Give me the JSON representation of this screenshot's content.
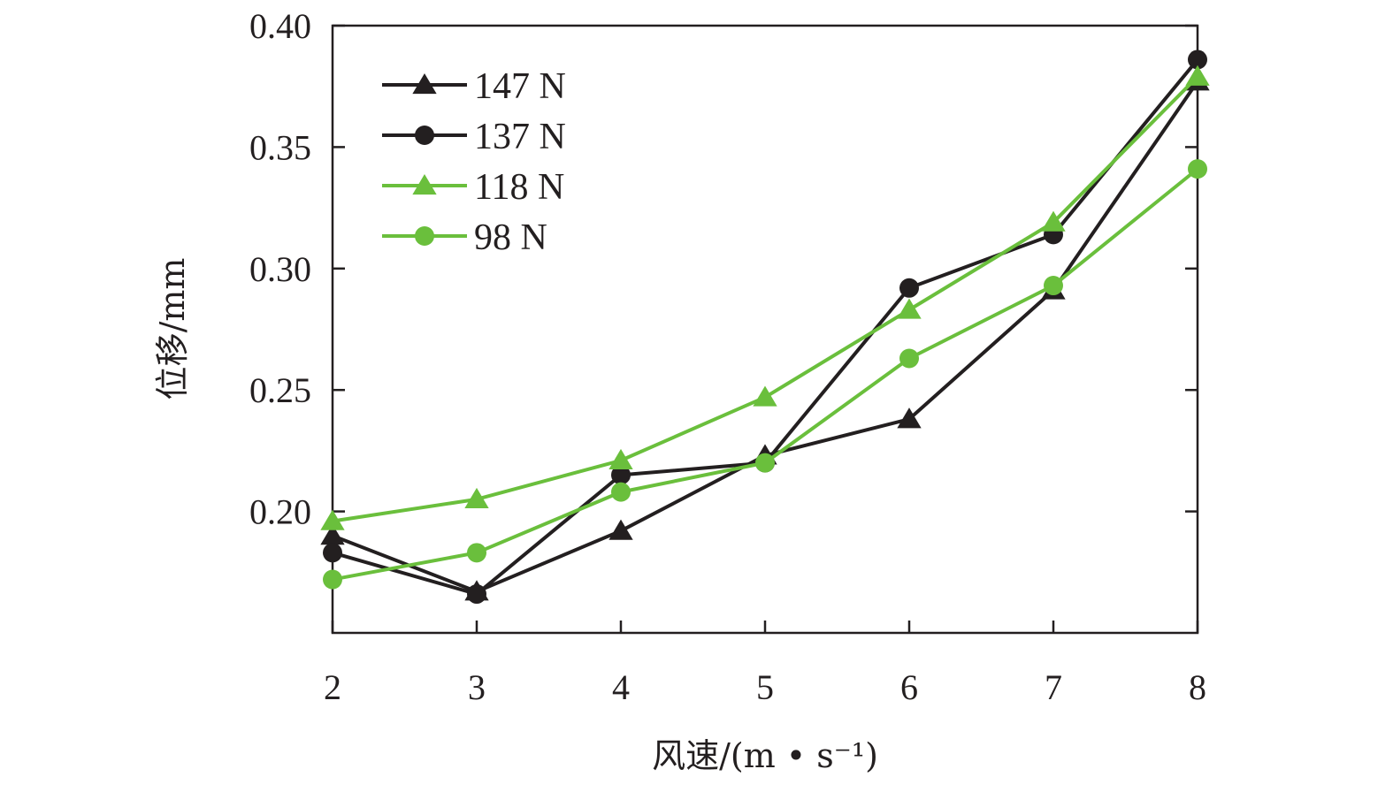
{
  "chart_data": {
    "type": "line",
    "xlabel": "风速/(m • s⁻¹)",
    "ylabel": "位移/mm",
    "xlim": [
      2,
      8
    ],
    "ylim": [
      0.15,
      0.4
    ],
    "xticks": [
      2,
      3,
      4,
      5,
      6,
      7,
      8
    ],
    "yticks": [
      0.2,
      0.25,
      0.3,
      0.35,
      0.4
    ],
    "ytick_labels": [
      "0.20",
      "0.25",
      "0.30",
      "0.35",
      "0.40"
    ],
    "legend_position": "top-left",
    "grid": false,
    "x": [
      2,
      3,
      4,
      5,
      6,
      7,
      8
    ],
    "series": [
      {
        "name": "147 N",
        "color": "#231f20",
        "marker": "triangle",
        "values": [
          0.19,
          0.167,
          0.192,
          0.223,
          0.238,
          0.291,
          0.377
        ]
      },
      {
        "name": "137 N",
        "color": "#231f20",
        "marker": "circle",
        "values": [
          0.183,
          0.166,
          0.215,
          0.22,
          0.292,
          0.314,
          0.386
        ]
      },
      {
        "name": "118 N",
        "color": "#6abf3c",
        "marker": "triangle",
        "values": [
          0.196,
          0.205,
          0.221,
          0.247,
          0.283,
          0.319,
          0.379
        ]
      },
      {
        "name": "98 N",
        "color": "#6abf3c",
        "marker": "circle",
        "values": [
          0.172,
          0.183,
          0.208,
          0.22,
          0.263,
          0.293,
          0.341
        ]
      }
    ]
  }
}
